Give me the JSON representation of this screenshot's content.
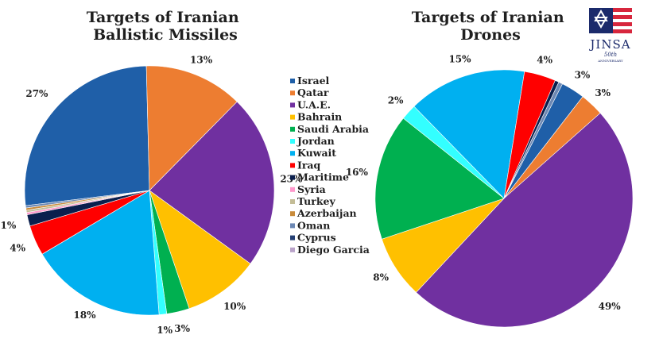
{
  "chart_data": [
    {
      "type": "pie",
      "title": "Targets of Iranian\nBallistic Missiles",
      "slices": [
        {
          "label": "Israel",
          "value": 27,
          "display": "27%",
          "color": "#1f5fa8"
        },
        {
          "label": "Qatar",
          "value": 13,
          "display": "13%",
          "color": "#ed7d31"
        },
        {
          "label": "U.A.E.",
          "value": 23,
          "display": "23%",
          "color": "#7030a0"
        },
        {
          "label": "Bahrain",
          "value": 10,
          "display": "10%",
          "color": "#ffc000"
        },
        {
          "label": "Saudi Arabia",
          "value": 3,
          "display": "3%",
          "color": "#00b050"
        },
        {
          "label": "Jordan",
          "value": 1,
          "display": "1%",
          "color": "#33ffff"
        },
        {
          "label": "Kuwait",
          "value": 18,
          "display": "18%",
          "color": "#00b0f0"
        },
        {
          "label": "Iraq",
          "value": 4,
          "display": "4%",
          "color": "#ff0000"
        },
        {
          "label": "Maritime",
          "value": 1.5,
          "display": "1%",
          "color": "#0a1f4d"
        },
        {
          "label": "Syria",
          "value": 0.3,
          "display": "",
          "color": "#ff99cc"
        },
        {
          "label": "Turkey",
          "value": 0.3,
          "display": "",
          "color": "#c4bd97"
        },
        {
          "label": "Azerbaijan",
          "value": 0.3,
          "display": "",
          "color": "#c98b3b"
        },
        {
          "label": "Oman",
          "value": 0.3,
          "display": "",
          "color": "#6b87b3"
        }
      ]
    },
    {
      "type": "pie",
      "title": "Targets of Iranian\nDrones",
      "slices": [
        {
          "label": "Israel",
          "value": 3,
          "display": "3%",
          "color": "#1f5fa8"
        },
        {
          "label": "Qatar",
          "value": 3,
          "display": "3%",
          "color": "#ed7d31"
        },
        {
          "label": "U.A.E.",
          "value": 49,
          "display": "49%",
          "color": "#7030a0"
        },
        {
          "label": "Bahrain",
          "value": 8,
          "display": "8%",
          "color": "#ffc000"
        },
        {
          "label": "Saudi Arabia",
          "value": 16,
          "display": "16%",
          "color": "#00b050"
        },
        {
          "label": "Jordan",
          "value": 2,
          "display": "2%",
          "color": "#33ffff"
        },
        {
          "label": "Kuwait",
          "value": 15,
          "display": "15%",
          "color": "#00b0f0"
        },
        {
          "label": "Iraq",
          "value": 4,
          "display": "4%",
          "color": "#ff0000"
        },
        {
          "label": "Maritime",
          "value": 0.5,
          "display": "",
          "color": "#0a1f4d"
        },
        {
          "label": "Oman",
          "value": 0.5,
          "display": "",
          "color": "#6b87b3"
        }
      ]
    }
  ],
  "legend": {
    "placement": "center",
    "items": [
      {
        "label": "Israel",
        "color": "#1f5fa8"
      },
      {
        "label": "Qatar",
        "color": "#ed7d31"
      },
      {
        "label": "U.A.E.",
        "color": "#7030a0"
      },
      {
        "label": "Bahrain",
        "color": "#ffc000"
      },
      {
        "label": "Saudi Arabia",
        "color": "#00b050"
      },
      {
        "label": "Jordan",
        "color": "#33ffff"
      },
      {
        "label": "Kuwait",
        "color": "#00b0f0"
      },
      {
        "label": "Iraq",
        "color": "#ff0000"
      },
      {
        "label": "Maritime",
        "color": "#0a1f4d"
      },
      {
        "label": "Syria",
        "color": "#ff99cc"
      },
      {
        "label": "Turkey",
        "color": "#c4bd97"
      },
      {
        "label": "Azerbaijan",
        "color": "#c98b3b"
      },
      {
        "label": "Oman",
        "color": "#6b87b3"
      },
      {
        "label": "Cyprus",
        "color": "#243f73"
      },
      {
        "label": "Diego Garcia",
        "color": "#b9a3c9"
      }
    ]
  },
  "logo": {
    "name": "JINSA",
    "anniversary": "50th",
    "tagline": "ANNIVERSARY",
    "icon": "star-of-david-flag-icon",
    "colors": {
      "navy": "#1b2a6b",
      "red": "#d7263d"
    }
  }
}
